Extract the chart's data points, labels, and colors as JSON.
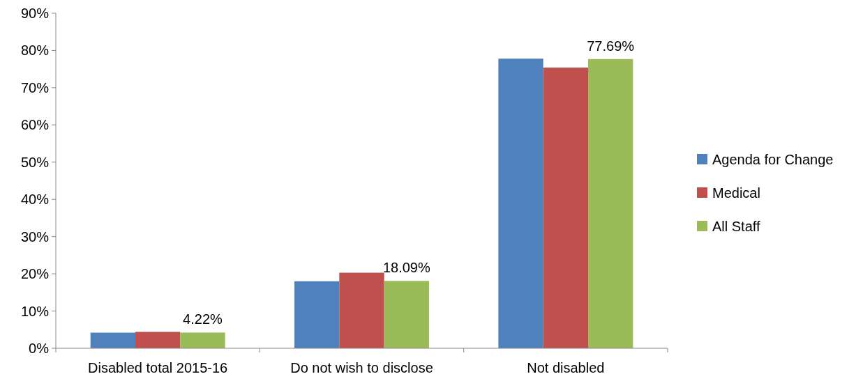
{
  "chart_data": {
    "type": "bar",
    "categories": [
      "Disabled total 2015-16",
      "Do not wish to disclose",
      "Not disabled"
    ],
    "series": [
      {
        "name": "Agenda for Change",
        "color": "#4f81bd",
        "values": [
          4.2,
          18.0,
          77.8
        ]
      },
      {
        "name": "Medical",
        "color": "#c0504d",
        "values": [
          4.4,
          20.3,
          75.4
        ]
      },
      {
        "name": "All Staff",
        "color": "#9bbb59",
        "values": [
          4.22,
          18.09,
          77.69
        ],
        "value_labels": [
          "4.22%",
          "18.09%",
          "77.69%"
        ]
      }
    ],
    "ylim": [
      0,
      90
    ],
    "yticks": [
      {
        "value": 0,
        "label": "0%"
      },
      {
        "value": 10,
        "label": "10%"
      },
      {
        "value": 20,
        "label": "20%"
      },
      {
        "value": 30,
        "label": "30%"
      },
      {
        "value": 40,
        "label": "40%"
      },
      {
        "value": 50,
        "label": "50%"
      },
      {
        "value": 60,
        "label": "60%"
      },
      {
        "value": 70,
        "label": "70%"
      },
      {
        "value": 80,
        "label": "80%"
      },
      {
        "value": 90,
        "label": "90%"
      }
    ],
    "legend": "right"
  }
}
